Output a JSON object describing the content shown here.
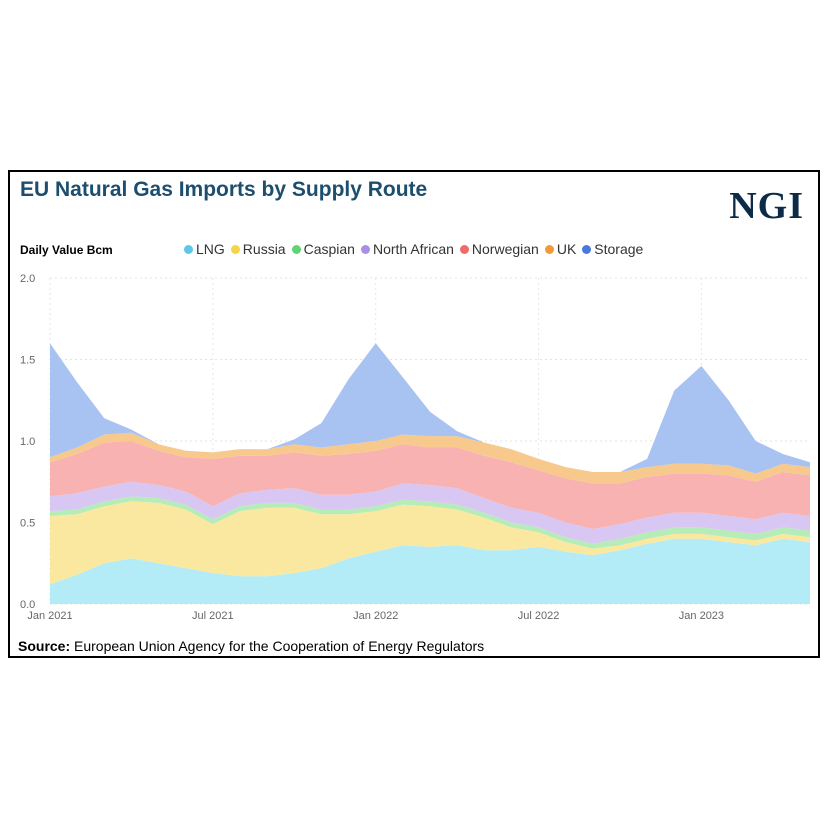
{
  "title": "EU Natural Gas Imports by Supply Route",
  "logo_text": "NGI",
  "source_label": "Source:",
  "source_text": "European Union Agency for the Cooperation of Energy Regulators",
  "chart_data": {
    "type": "area",
    "stacked": true,
    "ylabel": "Daily Value Bcm",
    "ylim": [
      0,
      2.0
    ],
    "yticks": [
      "0.0",
      "0.5",
      "1.0",
      "1.5",
      "2.0"
    ],
    "xticks": [
      "Jan 2021",
      "Jul 2021",
      "Jan 2022",
      "Jul 2022",
      "Jan 2023"
    ],
    "x": [
      "2021-01",
      "2021-02",
      "2021-03",
      "2021-04",
      "2021-05",
      "2021-06",
      "2021-07",
      "2021-08",
      "2021-09",
      "2021-10",
      "2021-11",
      "2021-12",
      "2022-01",
      "2022-02",
      "2022-03",
      "2022-04",
      "2022-05",
      "2022-06",
      "2022-07",
      "2022-08",
      "2022-09",
      "2022-10",
      "2022-11",
      "2022-12",
      "2023-01",
      "2023-02",
      "2023-03",
      "2023-04",
      "2023-05"
    ],
    "legend_position": "top",
    "series": [
      {
        "name": "LNG",
        "color": "#b3ecf7",
        "values": [
          0.12,
          0.18,
          0.25,
          0.28,
          0.25,
          0.22,
          0.19,
          0.17,
          0.17,
          0.19,
          0.22,
          0.28,
          0.32,
          0.36,
          0.35,
          0.36,
          0.33,
          0.33,
          0.35,
          0.32,
          0.3,
          0.33,
          0.37,
          0.4,
          0.4,
          0.38,
          0.36,
          0.4,
          0.38
        ]
      },
      {
        "name": "Russia",
        "color": "#fbe8a0",
        "values": [
          0.42,
          0.37,
          0.35,
          0.35,
          0.37,
          0.36,
          0.3,
          0.4,
          0.42,
          0.4,
          0.33,
          0.27,
          0.25,
          0.25,
          0.25,
          0.22,
          0.2,
          0.14,
          0.09,
          0.06,
          0.04,
          0.03,
          0.03,
          0.03,
          0.03,
          0.03,
          0.03,
          0.03,
          0.03
        ]
      },
      {
        "name": "Caspian",
        "color": "#b5ecb8",
        "values": [
          0.03,
          0.03,
          0.03,
          0.03,
          0.03,
          0.03,
          0.03,
          0.03,
          0.03,
          0.03,
          0.03,
          0.03,
          0.03,
          0.03,
          0.03,
          0.03,
          0.03,
          0.03,
          0.03,
          0.03,
          0.03,
          0.04,
          0.04,
          0.04,
          0.04,
          0.04,
          0.04,
          0.04,
          0.04
        ]
      },
      {
        "name": "North African",
        "color": "#d7c7f2",
        "values": [
          0.09,
          0.1,
          0.09,
          0.09,
          0.08,
          0.08,
          0.08,
          0.08,
          0.08,
          0.09,
          0.09,
          0.09,
          0.09,
          0.1,
          0.1,
          0.1,
          0.09,
          0.09,
          0.09,
          0.09,
          0.09,
          0.09,
          0.09,
          0.09,
          0.09,
          0.09,
          0.09,
          0.09,
          0.09
        ]
      },
      {
        "name": "Norwegian",
        "color": "#f9b2b2",
        "values": [
          0.21,
          0.24,
          0.27,
          0.25,
          0.21,
          0.21,
          0.29,
          0.23,
          0.21,
          0.22,
          0.24,
          0.25,
          0.25,
          0.24,
          0.23,
          0.25,
          0.26,
          0.28,
          0.26,
          0.27,
          0.28,
          0.25,
          0.25,
          0.24,
          0.24,
          0.25,
          0.23,
          0.25,
          0.25
        ]
      },
      {
        "name": "UK",
        "color": "#f7c98c",
        "values": [
          0.03,
          0.04,
          0.05,
          0.05,
          0.04,
          0.04,
          0.04,
          0.04,
          0.04,
          0.05,
          0.05,
          0.06,
          0.06,
          0.06,
          0.07,
          0.07,
          0.08,
          0.08,
          0.07,
          0.07,
          0.07,
          0.07,
          0.06,
          0.06,
          0.06,
          0.06,
          0.05,
          0.05,
          0.05
        ]
      },
      {
        "name": "Storage",
        "color": "#a8c2f1",
        "values": [
          0.7,
          0.4,
          0.1,
          0.02,
          0.0,
          0.0,
          0.0,
          0.0,
          0.0,
          0.03,
          0.15,
          0.4,
          0.6,
          0.35,
          0.15,
          0.03,
          0.0,
          0.0,
          0.0,
          0.0,
          0.0,
          0.0,
          0.05,
          0.45,
          0.6,
          0.4,
          0.2,
          0.06,
          0.03
        ]
      }
    ]
  }
}
